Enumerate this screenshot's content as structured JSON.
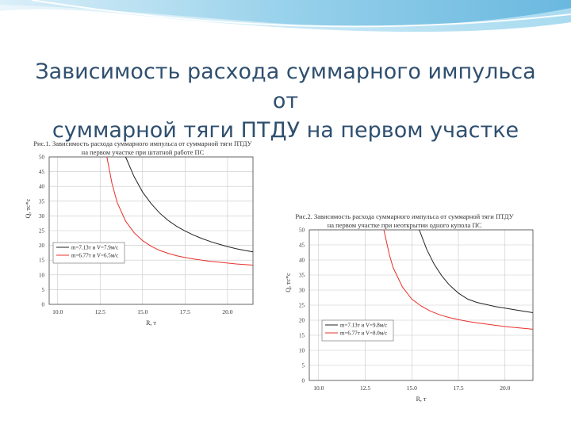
{
  "slide": {
    "title_line1": "Зависимость расхода суммарного импульса от",
    "title_line2": "суммарной тяги ПТДУ на первом участке"
  },
  "theme": {
    "title_color": "#2f4f6f",
    "banner_color": "#7ec3e3"
  },
  "chart_data": [
    {
      "type": "line",
      "title": "Рис.1. Зависимость расхода суммарного импульса от суммарной тяги ПТДУ на первом участке при штатной работе ПС",
      "title_line1": "Рис.1. Зависимость расхода суммарного импульса от суммарной тяги ПТДУ",
      "title_line2": "на первом участке при штатной работе ПС",
      "xlabel": "R, т",
      "ylabel": "Q, тс*с",
      "xlim": [
        9.5,
        21.5
      ],
      "ylim": [
        0,
        50
      ],
      "xticks": [
        10.0,
        12.5,
        15.0,
        17.5,
        20.0
      ],
      "xtick_labels": [
        "10.0",
        "12.5",
        "15.0",
        "17.5",
        "20.0"
      ],
      "yticks": [
        0,
        5,
        10,
        15,
        20,
        25,
        30,
        35,
        40,
        45,
        50
      ],
      "ytick_labels": [
        "0",
        "5",
        "10",
        "15",
        "20",
        "25",
        "30",
        "35",
        "40",
        "45",
        "50"
      ],
      "grid": true,
      "legend_position": "middle-left",
      "series": [
        {
          "name": "m=7.13т и V=7.9м/с",
          "color": "#222222",
          "x": [
            14.0,
            14.5,
            15.0,
            15.5,
            16.0,
            16.5,
            17.0,
            17.5,
            18.0,
            18.5,
            19.0,
            19.5,
            20.0,
            20.5,
            21.0,
            21.5
          ],
          "y": [
            50,
            43.3,
            38.1,
            34.2,
            31.0,
            28.5,
            26.5,
            24.9,
            23.5,
            22.3,
            21.3,
            20.4,
            19.6,
            18.9,
            18.3,
            17.8
          ]
        },
        {
          "name": "m=6.77т и V=6.5м/с",
          "color": "#e8302a",
          "x": [
            12.9,
            13.2,
            13.5,
            14.0,
            14.5,
            15.0,
            15.5,
            16.0,
            16.5,
            17.0,
            17.5,
            18.0,
            18.5,
            19.0,
            19.5,
            20.0,
            20.5,
            21.0,
            21.5
          ],
          "y": [
            50,
            41.0,
            34.6,
            28.2,
            24.3,
            21.6,
            19.7,
            18.3,
            17.3,
            16.5,
            15.9,
            15.4,
            15.0,
            14.6,
            14.3,
            14.0,
            13.7,
            13.5,
            13.3
          ]
        }
      ]
    },
    {
      "type": "line",
      "title": "Рис.2. Зависимость расхода суммарного импульса от суммарной тяги ПТДУ на первом участке при неоткрытии одного купола ПС",
      "title_line1": "Рис.2. Зависимость расхода суммарного импульса от суммарной тяги ПТДУ",
      "title_line2": "на первом участке при неоткрытии одного купола ПС",
      "xlabel": "R, т",
      "ylabel": "Q, тс*с",
      "xlim": [
        9.5,
        21.5
      ],
      "ylim": [
        0,
        50
      ],
      "xticks": [
        10.0,
        12.5,
        15.0,
        17.5,
        20.0
      ],
      "xtick_labels": [
        "10.0",
        "12.5",
        "15.0",
        "17.5",
        "20.0"
      ],
      "yticks": [
        0,
        5,
        10,
        15,
        20,
        25,
        30,
        35,
        40,
        45,
        50
      ],
      "ytick_labels": [
        "0",
        "5",
        "10",
        "15",
        "20",
        "25",
        "30",
        "35",
        "40",
        "45",
        "50"
      ],
      "grid": true,
      "legend_position": "bottom-middle",
      "series": [
        {
          "name": "m=7.13т и V=9.8м/с",
          "color": "#222222",
          "x": [
            15.4,
            15.8,
            16.2,
            16.6,
            17.0,
            17.5,
            18.0,
            18.5,
            19.0,
            19.5,
            20.0,
            20.5,
            21.0,
            21.5
          ],
          "y": [
            50,
            43.5,
            38.6,
            34.8,
            31.8,
            29.0,
            27.0,
            25.9,
            25.2,
            24.5,
            24.0,
            23.5,
            23.0,
            22.5
          ]
        },
        {
          "name": "m=6.77т и V=8.0м/с",
          "color": "#e8302a",
          "x": [
            13.5,
            13.8,
            14.0,
            14.5,
            15.0,
            15.5,
            16.0,
            16.5,
            17.0,
            17.5,
            18.0,
            18.5,
            19.0,
            19.5,
            20.0,
            20.5,
            21.0,
            21.5
          ],
          "y": [
            50,
            41.6,
            37.4,
            31.0,
            27.0,
            24.7,
            23.0,
            21.8,
            20.9,
            20.2,
            19.6,
            19.1,
            18.7,
            18.3,
            17.9,
            17.6,
            17.3,
            17.0
          ]
        }
      ]
    }
  ]
}
